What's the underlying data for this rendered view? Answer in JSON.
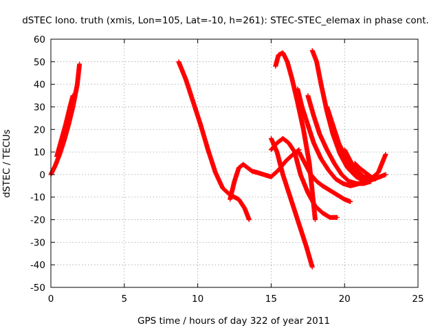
{
  "chart_data": {
    "type": "scatter",
    "title": "dSTEC Iono. truth (xmis, Lon=105, Lat=-10, h=261): STEC-STEC_elemax in phase cont.",
    "xlabel": "GPS time / hours of day 322 of year 2011",
    "ylabel": "dSTEC  / TECUs",
    "xlim": [
      0,
      25
    ],
    "ylim": [
      -50,
      60
    ],
    "xticks": [
      0,
      5,
      10,
      15,
      20,
      25
    ],
    "yticks": [
      -50,
      -40,
      -30,
      -20,
      -10,
      0,
      10,
      20,
      30,
      40,
      50,
      60
    ],
    "grid": true,
    "marker": "+",
    "color": "#ff0000",
    "series": [
      {
        "x": [
          0.0,
          0.3,
          0.6,
          0.9,
          1.2,
          1.5,
          1.8,
          1.95
        ],
        "y": [
          0,
          4,
          9,
          15,
          22,
          30,
          40,
          49
        ]
      },
      {
        "x": [
          0.4,
          0.7,
          1.0,
          1.3,
          1.5
        ],
        "y": [
          8,
          15,
          22,
          30,
          35
        ]
      },
      {
        "x": [
          8.7,
          9.2,
          9.7,
          10.2,
          10.7,
          11.2,
          11.7,
          12.2,
          12.8,
          13.2,
          13.5
        ],
        "y": [
          50,
          42,
          32,
          22,
          11,
          1,
          -6,
          -9,
          -11,
          -15,
          -20
        ]
      },
      {
        "x": [
          12.2,
          12.5,
          12.8,
          13.1,
          13.4,
          13.7,
          14.0,
          14.5,
          15.0,
          15.5,
          16.0,
          16.5,
          16.9
        ],
        "y": [
          -11,
          -3,
          3,
          4.5,
          3,
          1.5,
          1,
          0,
          -1,
          2,
          6,
          9,
          11
        ]
      },
      {
        "x": [
          15.0,
          15.4,
          15.8,
          16.2,
          16.6,
          17.0,
          17.4,
          17.8
        ],
        "y": [
          16,
          10,
          0,
          -8,
          -16,
          -24,
          -32,
          -41
        ]
      },
      {
        "x": [
          15.0,
          15.4,
          15.8,
          16.2,
          16.6,
          17.0,
          17.5,
          18.0,
          18.5,
          19.0,
          19.5
        ],
        "y": [
          11,
          14,
          16,
          14,
          10,
          0,
          -8,
          -14,
          -17,
          -19,
          -19
        ]
      },
      {
        "x": [
          16.9,
          17.3,
          17.7,
          18.1,
          18.5,
          19.0,
          19.5,
          20.0,
          20.4
        ],
        "y": [
          10,
          5,
          0,
          -3,
          -5,
          -7,
          -9,
          -11,
          -12
        ]
      },
      {
        "x": [
          15.3,
          15.5,
          15.8,
          16.1,
          16.4,
          16.8,
          17.2,
          17.6,
          18.0
        ],
        "y": [
          48,
          53,
          54,
          50,
          43,
          32,
          20,
          5,
          -20
        ]
      },
      {
        "x": [
          16.8,
          17.1,
          17.5,
          17.9,
          18.4,
          18.9,
          19.4,
          19.9,
          20.4,
          21.0,
          21.5
        ],
        "y": [
          38,
          30,
          22,
          14,
          7,
          2,
          -2,
          -4,
          -5,
          -4,
          -3
        ]
      },
      {
        "x": [
          17.5,
          17.9,
          18.3,
          18.8,
          19.3,
          19.8,
          20.3,
          20.8,
          21.3,
          21.8
        ],
        "y": [
          35,
          26,
          18,
          11,
          5,
          0,
          -3,
          -4,
          -4,
          -3
        ]
      },
      {
        "x": [
          17.8,
          18.1,
          18.4,
          18.8,
          19.2,
          19.7,
          20.2,
          20.8,
          21.4,
          22.0,
          22.8
        ],
        "y": [
          55,
          50,
          40,
          28,
          18,
          9,
          3,
          -1,
          -3,
          -2,
          0
        ]
      },
      {
        "x": [
          18.8,
          19.2,
          19.6,
          20.1,
          20.6,
          21.1,
          21.6,
          22.0
        ],
        "y": [
          30,
          22,
          14,
          7,
          2,
          -1,
          -2,
          -1
        ]
      },
      {
        "x": [
          20.0,
          20.4,
          20.8,
          21.3,
          21.8,
          22.3,
          22.8
        ],
        "y": [
          11,
          6,
          2,
          -1,
          -2,
          1,
          9
        ]
      },
      {
        "x": [
          20.7,
          21.0,
          21.4,
          21.8,
          22.1
        ],
        "y": [
          5,
          3,
          1,
          -1,
          -2
        ]
      }
    ]
  }
}
